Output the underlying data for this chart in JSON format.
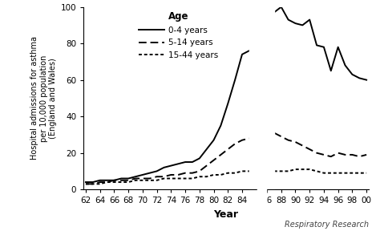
{
  "ylabel": "Hospital admissions for asthma\nper 10,000 population\n(England and Wales)",
  "xlabel": "Year",
  "ylim": [
    0,
    100
  ],
  "yticks": [
    0,
    20,
    40,
    60,
    80,
    100
  ],
  "legend_title": "Age",
  "legend_entries": [
    "0-4 years",
    "5-14 years",
    "15-44 years"
  ],
  "line_0_4": {
    "x": [
      62,
      63,
      64,
      65,
      66,
      67,
      68,
      69,
      70,
      71,
      72,
      73,
      74,
      75,
      76,
      77,
      78,
      79,
      80,
      81,
      82,
      83,
      84,
      85,
      87,
      88,
      89,
      90,
      91,
      92,
      93,
      94,
      95,
      96,
      97,
      98,
      99,
      100
    ],
    "y": [
      4,
      4,
      5,
      5,
      5,
      6,
      6,
      7,
      8,
      9,
      10,
      12,
      13,
      14,
      15,
      15,
      17,
      22,
      27,
      35,
      47,
      60,
      74,
      76,
      97,
      100,
      93,
      91,
      90,
      93,
      79,
      78,
      65,
      78,
      68,
      63,
      61,
      60
    ]
  },
  "line_5_14": {
    "x": [
      62,
      63,
      64,
      65,
      66,
      67,
      68,
      69,
      70,
      71,
      72,
      73,
      74,
      75,
      76,
      77,
      78,
      79,
      80,
      81,
      82,
      83,
      84,
      85,
      87,
      88,
      89,
      90,
      91,
      92,
      93,
      94,
      95,
      96,
      97,
      98,
      99,
      100
    ],
    "y": [
      3,
      3,
      4,
      4,
      5,
      5,
      5,
      6,
      6,
      6,
      7,
      7,
      8,
      8,
      9,
      9,
      10,
      13,
      16,
      19,
      22,
      25,
      27,
      28,
      31,
      29,
      27,
      26,
      24,
      22,
      20,
      19,
      18,
      20,
      19,
      19,
      18,
      19
    ]
  },
  "line_15_44": {
    "x": [
      62,
      63,
      64,
      65,
      66,
      67,
      68,
      69,
      70,
      71,
      72,
      73,
      74,
      75,
      76,
      77,
      78,
      79,
      80,
      81,
      82,
      83,
      84,
      85,
      87,
      88,
      89,
      90,
      91,
      92,
      93,
      94,
      95,
      96,
      97,
      98,
      99,
      100
    ],
    "y": [
      3,
      3,
      3,
      4,
      4,
      4,
      4,
      5,
      5,
      5,
      5,
      6,
      6,
      6,
      6,
      6,
      7,
      7,
      8,
      8,
      9,
      9,
      10,
      10,
      10,
      10,
      10,
      11,
      11,
      11,
      10,
      9,
      9,
      9,
      9,
      9,
      9,
      9
    ]
  },
  "background_color": "#ffffff",
  "line_color": "#000000",
  "annotation": "Respiratory Research"
}
